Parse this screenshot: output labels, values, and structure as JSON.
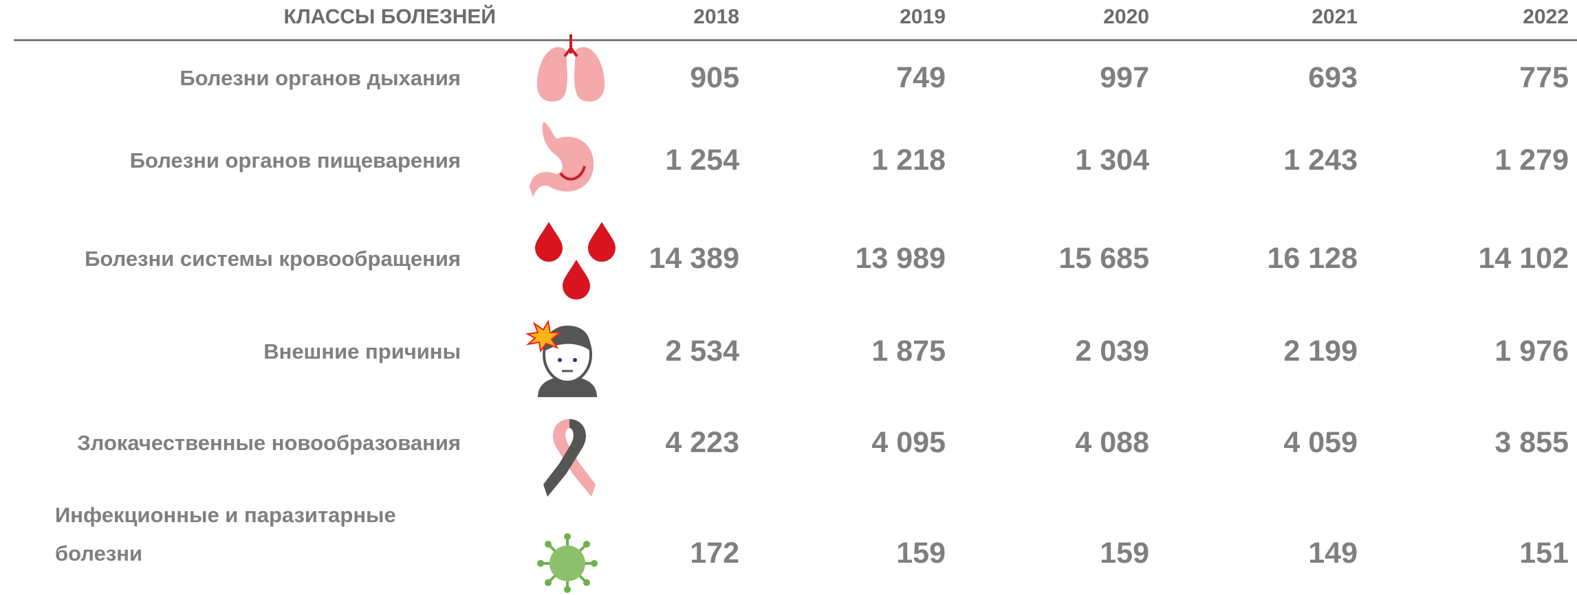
{
  "header": {
    "label": "КЛАССЫ БОЛЕЗНЕЙ",
    "years": [
      "2018",
      "2019",
      "2020",
      "2021",
      "2022"
    ]
  },
  "table": {
    "rows": [
      {
        "name": "Болезни органов дыхания",
        "values": [
          "905",
          "749",
          "997",
          "693",
          "775"
        ]
      },
      {
        "name": "Болезни органов пищеварения",
        "values": [
          "1 254",
          "1 218",
          "1 304",
          "1 243",
          "1 279"
        ]
      },
      {
        "name": "Болезни системы кровообращения",
        "values": [
          "14 389",
          "13 989",
          "15 685",
          "16 128",
          "14 102"
        ]
      },
      {
        "name": "Внешние причины",
        "values": [
          "2 534",
          "1 875",
          "2 039",
          "2 199",
          "1 976"
        ]
      },
      {
        "name": "Злокачественные новообразования",
        "values": [
          "4 223",
          "4 095",
          "4 088",
          "4 059",
          "3 855"
        ]
      },
      {
        "name": "Инфекционные и паразитарные болезни",
        "values": [
          "172",
          "159",
          "159",
          "149",
          "151"
        ]
      }
    ]
  }
}
